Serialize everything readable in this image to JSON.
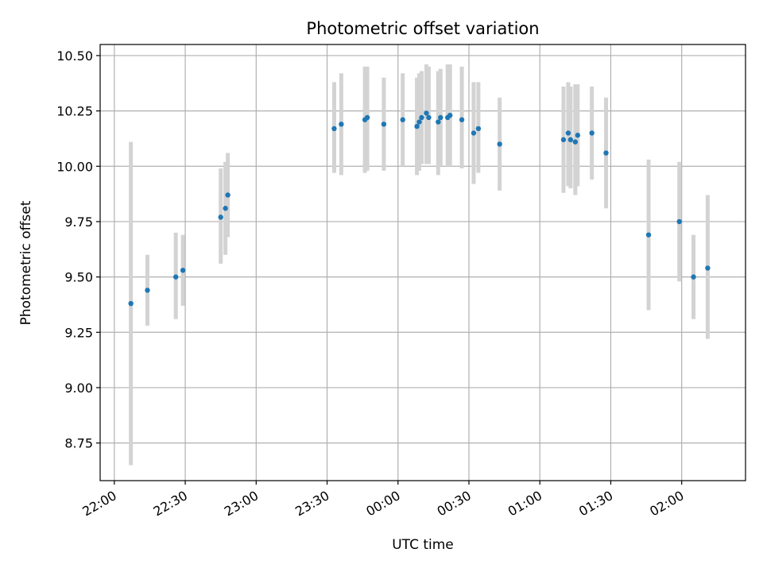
{
  "chart_data": {
    "type": "scatter",
    "title": "Photometric offset variation",
    "xlabel": "UTC time",
    "ylabel": "Photometric offset",
    "x_axis": {
      "kind": "time-of-day",
      "min": "21:54",
      "max": "02:27",
      "ticks": [
        "22:00",
        "22:30",
        "23:00",
        "23:30",
        "00:00",
        "00:30",
        "01:00",
        "01:30",
        "02:00"
      ]
    },
    "y_axis": {
      "min": 8.58,
      "max": 10.55,
      "ticks": [
        "8.75",
        "9.00",
        "9.25",
        "9.50",
        "9.75",
        "10.00",
        "10.25",
        "10.50"
      ]
    },
    "grid": true,
    "colors": {
      "point": "#1f77b4",
      "errorbar": "#d3d3d3",
      "grid": "#b0b0b0"
    },
    "series": [
      {
        "points": [
          {
            "time": "22:07",
            "y": 9.38,
            "low": 8.65,
            "high": 10.11
          },
          {
            "time": "22:14",
            "y": 9.44,
            "low": 9.28,
            "high": 9.6
          },
          {
            "time": "22:26",
            "y": 9.5,
            "low": 9.31,
            "high": 9.7
          },
          {
            "time": "22:29",
            "y": 9.53,
            "low": 9.37,
            "high": 9.69
          },
          {
            "time": "22:45",
            "y": 9.77,
            "low": 9.56,
            "high": 9.99
          },
          {
            "time": "22:47",
            "y": 9.81,
            "low": 9.6,
            "high": 10.02
          },
          {
            "time": "22:48",
            "y": 9.87,
            "low": 9.68,
            "high": 10.06
          },
          {
            "time": "23:33",
            "y": 10.17,
            "low": 9.97,
            "high": 10.38
          },
          {
            "time": "23:36",
            "y": 10.19,
            "low": 9.96,
            "high": 10.42
          },
          {
            "time": "23:46",
            "y": 10.21,
            "low": 9.97,
            "high": 10.45
          },
          {
            "time": "23:47",
            "y": 10.22,
            "low": 9.98,
            "high": 10.45
          },
          {
            "time": "23:54",
            "y": 10.19,
            "low": 9.98,
            "high": 10.4
          },
          {
            "time": "00:02",
            "y": 10.21,
            "low": 10.0,
            "high": 10.42
          },
          {
            "time": "00:08",
            "y": 10.18,
            "low": 9.96,
            "high": 10.4
          },
          {
            "time": "00:09",
            "y": 10.2,
            "low": 9.98,
            "high": 10.42
          },
          {
            "time": "00:10",
            "y": 10.22,
            "low": 10.01,
            "high": 10.43
          },
          {
            "time": "00:12",
            "y": 10.24,
            "low": 10.01,
            "high": 10.46
          },
          {
            "time": "00:13",
            "y": 10.22,
            "low": 10.01,
            "high": 10.45
          },
          {
            "time": "00:17",
            "y": 10.2,
            "low": 9.96,
            "high": 10.43
          },
          {
            "time": "00:18",
            "y": 10.22,
            "low": 10.0,
            "high": 10.44
          },
          {
            "time": "00:21",
            "y": 10.22,
            "low": 10.0,
            "high": 10.46
          },
          {
            "time": "00:22",
            "y": 10.23,
            "low": 10.0,
            "high": 10.46
          },
          {
            "time": "00:27",
            "y": 10.21,
            "low": 9.99,
            "high": 10.45
          },
          {
            "time": "00:32",
            "y": 10.15,
            "low": 9.92,
            "high": 10.38
          },
          {
            "time": "00:34",
            "y": 10.17,
            "low": 9.97,
            "high": 10.38
          },
          {
            "time": "00:43",
            "y": 10.1,
            "low": 9.89,
            "high": 10.31
          },
          {
            "time": "01:10",
            "y": 10.12,
            "low": 9.88,
            "high": 10.36
          },
          {
            "time": "01:12",
            "y": 10.15,
            "low": 9.91,
            "high": 10.38
          },
          {
            "time": "01:13",
            "y": 10.12,
            "low": 9.9,
            "high": 10.36
          },
          {
            "time": "01:15",
            "y": 10.11,
            "low": 9.87,
            "high": 10.37
          },
          {
            "time": "01:16",
            "y": 10.14,
            "low": 9.91,
            "high": 10.37
          },
          {
            "time": "01:22",
            "y": 10.15,
            "low": 9.94,
            "high": 10.36
          },
          {
            "time": "01:28",
            "y": 10.06,
            "low": 9.81,
            "high": 10.31
          },
          {
            "time": "01:46",
            "y": 9.69,
            "low": 9.35,
            "high": 10.03
          },
          {
            "time": "01:59",
            "y": 9.75,
            "low": 9.48,
            "high": 10.02
          },
          {
            "time": "02:05",
            "y": 9.5,
            "low": 9.31,
            "high": 9.69
          },
          {
            "time": "02:11",
            "y": 9.54,
            "low": 9.22,
            "high": 9.87
          }
        ]
      }
    ]
  }
}
